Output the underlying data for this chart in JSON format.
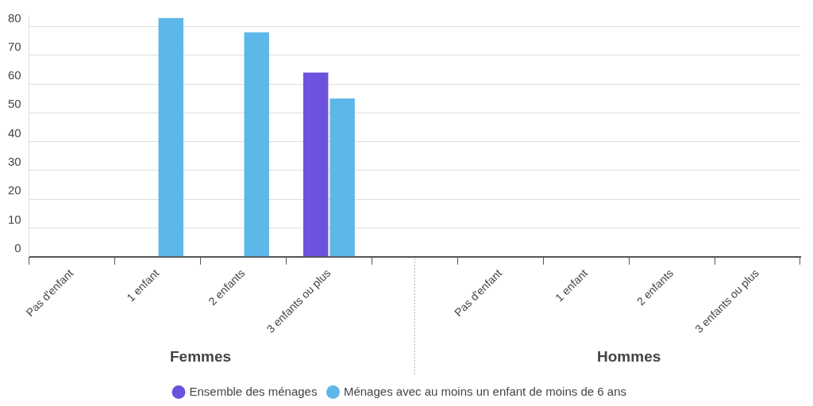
{
  "chart_data": {
    "type": "bar",
    "categories": [
      "Pas d'enfant",
      "1 enfant",
      "2 enfants",
      "3 enfants ou plus",
      null,
      "Pas d'enfant",
      "1 enfant",
      "2 enfants",
      "3 enfants ou plus"
    ],
    "series": [
      {
        "name": "Ensemble des ménages",
        "color": "#6c52dc",
        "values": [
          null,
          null,
          null,
          64,
          null,
          null,
          null,
          null,
          null
        ]
      },
      {
        "name": "Ménages avec au moins un enfant de moins de 6 ans",
        "color": "#5db7e8",
        "values": [
          null,
          83,
          78,
          55,
          null,
          null,
          null,
          null,
          null
        ]
      }
    ],
    "ylim": [
      0,
      84
    ],
    "yticks": [
      0,
      10,
      20,
      30,
      40,
      50,
      60,
      70,
      80
    ],
    "grid": "y",
    "legend": "bottom",
    "annotations": [
      "Femmes",
      "Hommes"
    ]
  }
}
